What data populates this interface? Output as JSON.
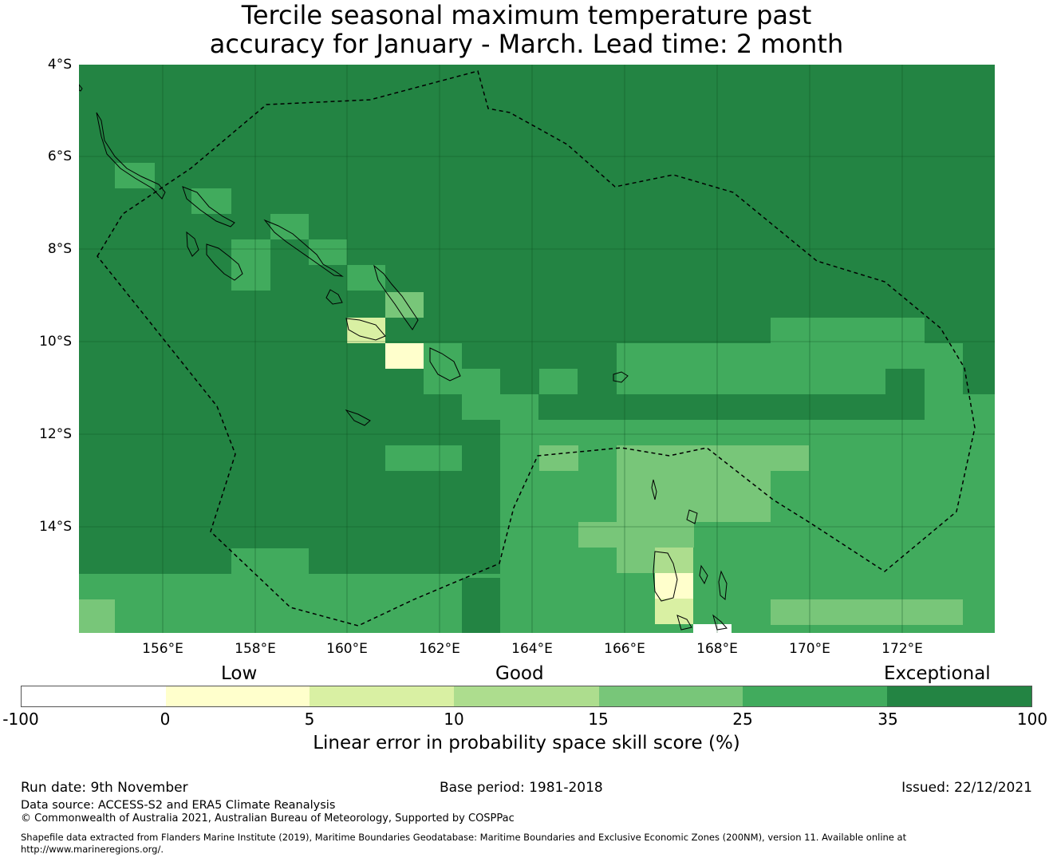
{
  "title": {
    "line1": "Tercile seasonal maximum temperature past",
    "line2": "accuracy for January - March. Lead time: 2 month"
  },
  "lat_labels": [
    "4°S",
    "6°S",
    "8°S",
    "10°S",
    "12°S",
    "14°S"
  ],
  "lon_labels": [
    "156°E",
    "158°E",
    "160°E",
    "162°E",
    "164°E",
    "166°E",
    "168°E",
    "170°E",
    "172°E"
  ],
  "legend": {
    "categories": [
      "Low",
      "Good",
      "Exceptional"
    ],
    "ticks": [
      "-100",
      "0",
      "5",
      "10",
      "15",
      "25",
      "35",
      "100"
    ],
    "colors": [
      "#ffffff",
      "#ffffcc",
      "#d9f0a3",
      "#addd8e",
      "#78c679",
      "#41ab5d",
      "#238443"
    ],
    "label": "Linear error in probability space skill score (%)"
  },
  "footer": {
    "run_date": "Run date: 9th November",
    "base_period": "Base period: 1981-2018",
    "issued": "Issued: 22/12/2021",
    "data_source": "Data source: ACCESS-S2 and ERA5 Climate Reanalysis",
    "copyright": "© Commonwealth of Australia 2021, Australian Bureau of Meteorology, Supported by COSPPac",
    "shapefile_line1": "Shapefile data extracted from Flanders Marine Institute (2019), Maritime Boundaries Geodatabase: Maritime Boundaries and Exclusive Economic Zones (200NM), version 11. Available online at",
    "shapefile_line2": "http://www.marineregions.org/."
  }
}
